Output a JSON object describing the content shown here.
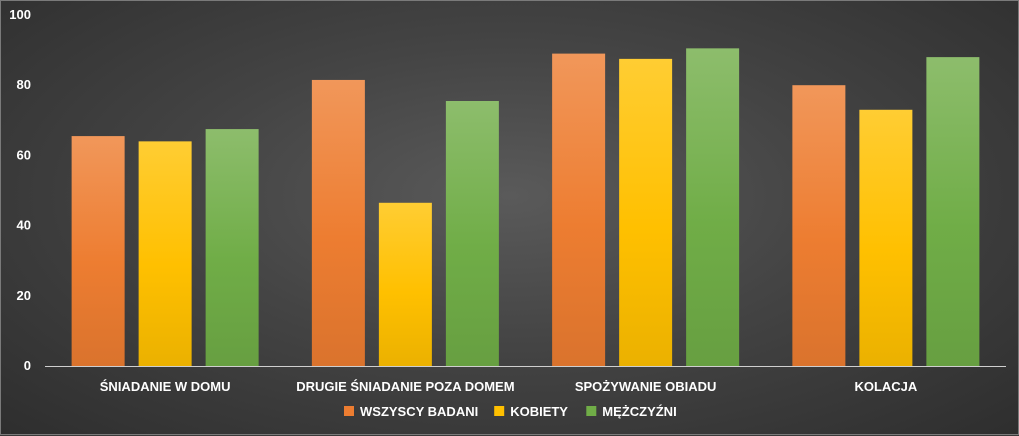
{
  "chart_data": {
    "type": "bar",
    "categories": [
      "ŚNIADANIE W DOMU",
      "DRUGIE ŚNIADANIE POZA DOMEM",
      "SPOŻYWANIE OBIADU",
      "KOLACJA"
    ],
    "series": [
      {
        "name": "WSZYSCY BADANI",
        "values": [
          65.5,
          81.5,
          89,
          80
        ],
        "color": "#ED7D31"
      },
      {
        "name": "KOBIETY",
        "values": [
          64,
          46.5,
          87.5,
          73
        ],
        "color": "#FFC000"
      },
      {
        "name": "MĘŻCZYŹNI",
        "values": [
          67.5,
          75.5,
          90.5,
          88
        ],
        "color": "#70AD47"
      }
    ],
    "ylim": [
      0,
      100
    ],
    "yticks": [
      0,
      20,
      40,
      60,
      80,
      100
    ],
    "grid": false,
    "legend": "bottom",
    "title": "",
    "xlabel": "",
    "ylabel": ""
  }
}
